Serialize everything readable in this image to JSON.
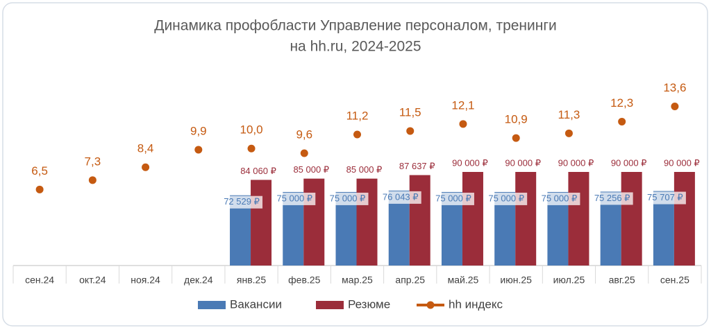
{
  "chart_data": {
    "type": "bar",
    "title": [
      "Динамика профобласти Управление персоналом, тренинги",
      "на hh.ru, 2024-2025"
    ],
    "categories": [
      "сен.24",
      "окт.24",
      "ноя.24",
      "дек.24",
      "янв.25",
      "фев.25",
      "мар.25",
      "апр.25",
      "май.25",
      "июн.25",
      "июл.25",
      "авг.25",
      "сен.25"
    ],
    "ylim": [
      20000,
      160000
    ],
    "y2lim": [
      0,
      16
    ],
    "series": [
      {
        "name": "Вакансии",
        "color": "#4a7ab5",
        "type": "bar",
        "values": [
          null,
          null,
          null,
          null,
          72529,
          75000,
          75000,
          76043,
          75000,
          75000,
          75000,
          75256,
          75707
        ],
        "value_labels": [
          null,
          null,
          null,
          null,
          "72 529 ₽",
          "75 000 ₽",
          "75 000 ₽",
          "76 043 ₽",
          "75 000 ₽",
          "75 000 ₽",
          "75 000 ₽",
          "75 256 ₽",
          "75 707 ₽"
        ]
      },
      {
        "name": "Резюме",
        "color": "#9b2d3a",
        "type": "bar",
        "values": [
          null,
          null,
          null,
          null,
          84060,
          85000,
          85000,
          87637,
          90000,
          90000,
          90000,
          90000,
          90000
        ],
        "value_labels": [
          null,
          null,
          null,
          null,
          "84 060 ₽",
          "85 000 ₽",
          "85 000 ₽",
          "87 637 ₽",
          "90 000 ₽",
          "90 000 ₽",
          "90 000 ₽",
          "90 000 ₽",
          "90 000 ₽"
        ]
      },
      {
        "name": "hh индекс",
        "color": "#c55a11",
        "type": "line",
        "axis": "y2",
        "values": [
          6.5,
          7.3,
          8.4,
          9.9,
          10.0,
          9.6,
          11.2,
          11.5,
          12.1,
          10.9,
          11.3,
          12.3,
          13.6
        ],
        "value_labels": [
          "6,5",
          "7,3",
          "8,4",
          "9,9",
          "10,0",
          "9,6",
          "11,2",
          "11,5",
          "12,1",
          "10,9",
          "11,3",
          "12,3",
          "13,6"
        ]
      }
    ]
  }
}
